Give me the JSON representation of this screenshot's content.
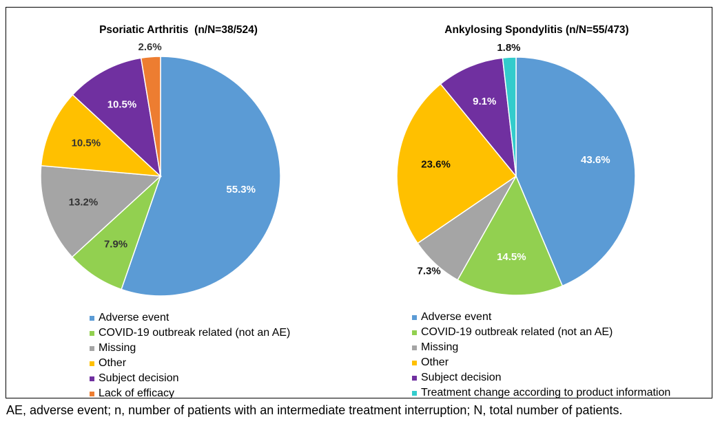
{
  "footnote": "AE, adverse event; n, number of patients with an intermediate treatment interruption; N, total number of patients.",
  "colors": {
    "adverse_event": "#5B9BD5",
    "covid": "#92D050",
    "missing": "#A5A5A5",
    "other": "#FFC000",
    "subject_decision": "#7030A0",
    "lack_of_efficacy": "#ED7D31",
    "treatment_change": "#33CCCC"
  },
  "chart_data": [
    {
      "type": "pie",
      "title": "Psoriatic Arthritis  (n/N=38/524)",
      "legend_position": "bottom",
      "slices": [
        {
          "label": "Adverse event",
          "value": 55.3,
          "display": "55.3%",
          "color": "#5B9BD5",
          "label_color": "#ffffff"
        },
        {
          "label": "COVID-19 outbreak related (not an AE)",
          "value": 7.9,
          "display": "7.9%",
          "color": "#92D050",
          "label_color": "#333333"
        },
        {
          "label": "Missing",
          "value": 13.2,
          "display": "13.2%",
          "color": "#A5A5A5",
          "label_color": "#333333"
        },
        {
          "label": "Other",
          "value": 10.5,
          "display": "10.5%",
          "color": "#FFC000",
          "label_color": "#333333"
        },
        {
          "label": "Subject decision",
          "value": 10.5,
          "display": "10.5%",
          "color": "#7030A0",
          "label_color": "#ffffff"
        },
        {
          "label": "Lack of efficacy",
          "value": 2.6,
          "display": "2.6%",
          "color": "#ED7D31",
          "label_color": "#333333",
          "label_outside": true
        }
      ]
    },
    {
      "type": "pie",
      "title": "Ankylosing Spondylitis (n/N=55/473)",
      "legend_position": "bottom",
      "slices": [
        {
          "label": "Adverse event",
          "value": 43.6,
          "display": "43.6%",
          "color": "#5B9BD5",
          "label_color": "#ffffff"
        },
        {
          "label": "COVID-19 outbreak related (not an AE)",
          "value": 14.5,
          "display": "14.5%",
          "color": "#92D050",
          "label_color": "#ffffff"
        },
        {
          "label": "Missing",
          "value": 7.3,
          "display": "7.3%",
          "color": "#A5A5A5",
          "label_color": "#111111",
          "label_outside": true
        },
        {
          "label": "Other",
          "value": 23.6,
          "display": "23.6%",
          "color": "#FFC000",
          "label_color": "#111111"
        },
        {
          "label": "Subject decision",
          "value": 9.1,
          "display": "9.1%",
          "color": "#7030A0",
          "label_color": "#ffffff"
        },
        {
          "label": "Treatment change according to product information",
          "value": 1.8,
          "display": "1.8%",
          "color": "#33CCCC",
          "label_color": "#111111",
          "label_outside": true
        }
      ]
    }
  ]
}
